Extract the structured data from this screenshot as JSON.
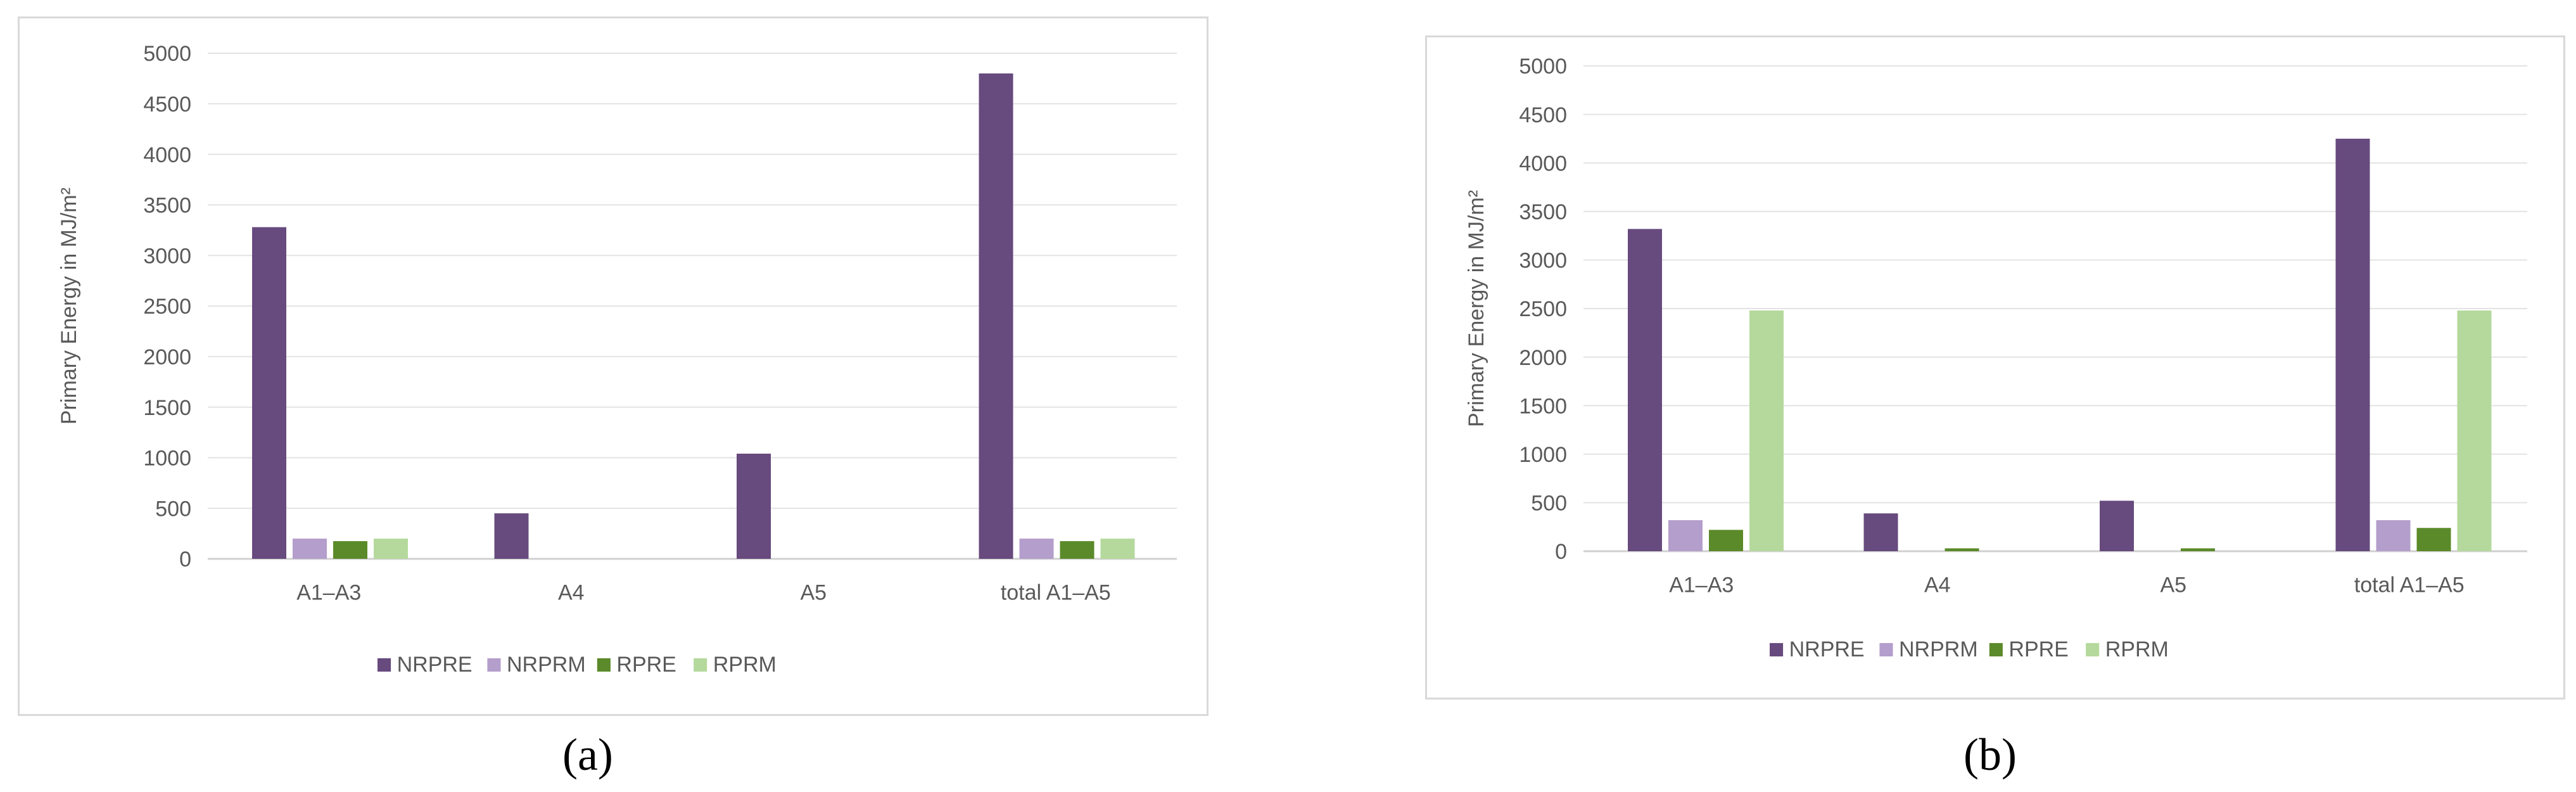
{
  "panels": [
    {
      "label": "(a)"
    },
    {
      "label": "(b)"
    }
  ],
  "chart_data": [
    {
      "type": "bar",
      "title": "",
      "xlabel": "",
      "ylabel": "Primary Energy in MJ/m²",
      "ylim": [
        0,
        5000
      ],
      "yticks": [
        0,
        500,
        1000,
        1500,
        2000,
        2500,
        3000,
        3500,
        4000,
        4500,
        5000
      ],
      "categories": [
        "A1–A3",
        "A4",
        "A5",
        "total A1–A5"
      ],
      "series": [
        {
          "name": "NRPRE",
          "color": "#674a7e",
          "values": [
            3280,
            450,
            1040,
            4800
          ]
        },
        {
          "name": "NRPRM",
          "color": "#b49ecc",
          "values": [
            200,
            0,
            0,
            200
          ]
        },
        {
          "name": "RPRE",
          "color": "#5b8a2a",
          "values": [
            175,
            0,
            0,
            175
          ]
        },
        {
          "name": "RPRM",
          "color": "#b5d99c",
          "values": [
            200,
            0,
            0,
            200
          ]
        }
      ],
      "grid": true,
      "legend": "bottom"
    },
    {
      "type": "bar",
      "title": "",
      "xlabel": "",
      "ylabel": "Primary Energy in MJ/m²",
      "ylim": [
        0,
        5000
      ],
      "yticks": [
        0,
        500,
        1000,
        1500,
        2000,
        2500,
        3000,
        3500,
        4000,
        4500,
        5000
      ],
      "categories": [
        "A1–A3",
        "A4",
        "A5",
        "total A1–A5"
      ],
      "series": [
        {
          "name": "NRPRE",
          "color": "#674a7e",
          "values": [
            3320,
            390,
            520,
            4250
          ]
        },
        {
          "name": "NRPRM",
          "color": "#b49ecc",
          "values": [
            320,
            0,
            0,
            320
          ]
        },
        {
          "name": "RPRE",
          "color": "#5b8a2a",
          "values": [
            220,
            30,
            30,
            240
          ]
        },
        {
          "name": "RPRM",
          "color": "#b5d99c",
          "values": [
            2480,
            0,
            0,
            2480
          ]
        }
      ],
      "grid": true,
      "legend": "bottom"
    }
  ]
}
